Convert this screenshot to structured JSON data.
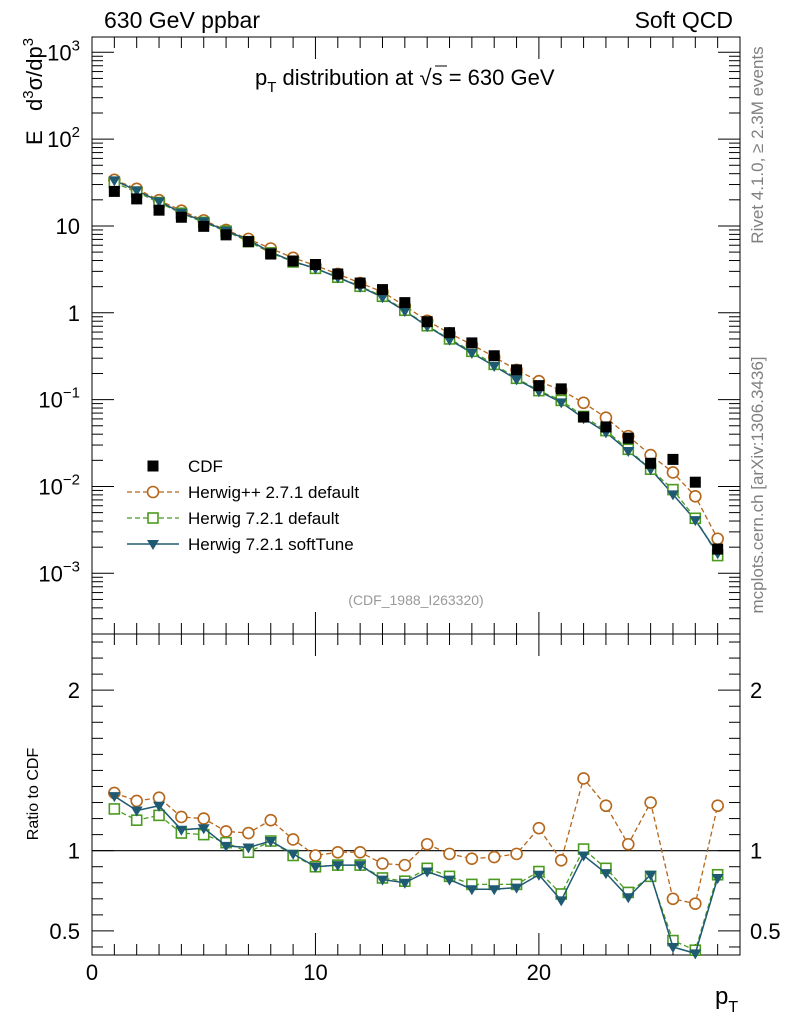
{
  "header": {
    "left_title": "630 GeV ppbar",
    "right_title": "Soft QCD"
  },
  "side_text": {
    "rivet": "Rivet 4.1.0, ≥ 2.3M events",
    "mcplots": "mcplots.cern.ch [arXiv:1306.3436]"
  },
  "chart_data": {
    "type": "scatter",
    "title": "p_T distribution at √s = 630 GeV",
    "title_parts": {
      "pre": "p",
      "sub": "T",
      "mid": " distribution at ",
      "sqrt": "√",
      "s": "s",
      "post": " = 630 GeV"
    },
    "analysis_id": "(CDF_1988_I263320)",
    "xlabel": "p_T",
    "ylabel": "E d³σ/dp³",
    "ratio_ylabel": "Ratio to CDF",
    "xlim": [
      0,
      29
    ],
    "ylim": [
      0.0002,
      1500
    ],
    "yscale": "log",
    "ratio_ylim": [
      0.35,
      2.35
    ],
    "x_ticks": [
      0,
      10,
      20
    ],
    "y_tick_labels": [
      "10^-3",
      "10^-2",
      "10^-1",
      "1",
      "10",
      "10^2",
      "10^3"
    ],
    "ratio_ticks": [
      0.5,
      1,
      2
    ],
    "legend_position": "bottom-left",
    "x": [
      1,
      2,
      3,
      4,
      5,
      6,
      7,
      8,
      9,
      10,
      11,
      12,
      13,
      14,
      15,
      16,
      17,
      18,
      19,
      20,
      21,
      22,
      23,
      24,
      25,
      26,
      27,
      28
    ],
    "series": [
      {
        "name": "CDF",
        "color": "#000000",
        "marker": "square-filled",
        "line": "none",
        "values": [
          25,
          20.5,
          15.2,
          12.6,
          9.9,
          7.9,
          6.6,
          4.75,
          3.95,
          3.6,
          2.8,
          2.2,
          1.85,
          1.31,
          0.79,
          0.59,
          0.45,
          0.32,
          0.22,
          0.145,
          0.133,
          0.063,
          0.0485,
          0.036,
          0.0185,
          0.0205,
          0.0112,
          0.0019
        ]
      },
      {
        "name": "Herwig++ 2.7.1 default",
        "color": "#b5661a",
        "marker": "circle-open",
        "line": "dashed",
        "values": [
          34,
          26.8,
          19.8,
          15,
          11.6,
          9.0,
          7.1,
          5.5,
          4.3,
          3.5,
          2.8,
          2.2,
          1.74,
          1.2,
          0.81,
          0.58,
          0.43,
          0.31,
          0.22,
          0.163,
          0.128,
          0.092,
          0.062,
          0.038,
          0.023,
          0.0145,
          0.0077,
          0.0025
        ]
      },
      {
        "name": "Herwig 7.2.1 default",
        "color": "#4c9a1f",
        "marker": "square-open",
        "line": "dashed",
        "values": [
          31.5,
          24.6,
          18.6,
          14.0,
          11.0,
          8.7,
          6.6,
          4.9,
          3.85,
          3.25,
          2.57,
          2.02,
          1.55,
          1.07,
          0.71,
          0.5,
          0.36,
          0.255,
          0.176,
          0.127,
          0.098,
          0.064,
          0.044,
          0.0268,
          0.0158,
          0.0092,
          0.0043,
          0.0016
        ]
      },
      {
        "name": "Herwig 7.2.1 softTune",
        "color": "#1f5a73",
        "marker": "triangle-down-filled",
        "line": "solid",
        "values": [
          33.5,
          25.6,
          19.2,
          14.2,
          11.3,
          8.8,
          6.9,
          5.0,
          3.9,
          3.25,
          2.55,
          2.0,
          1.51,
          1.05,
          0.7,
          0.49,
          0.345,
          0.244,
          0.171,
          0.125,
          0.093,
          0.061,
          0.042,
          0.0256,
          0.0158,
          0.0081,
          0.0041,
          0.0017
        ]
      }
    ],
    "ratios": [
      {
        "name": "Herwig++ 2.7.1 default",
        "values": [
          1.36,
          1.31,
          1.33,
          1.21,
          1.2,
          1.12,
          1.11,
          1.19,
          1.07,
          0.97,
          0.99,
          0.99,
          0.92,
          0.91,
          1.04,
          0.98,
          0.95,
          0.96,
          0.98,
          1.14,
          0.94,
          1.45,
          1.28,
          1.04,
          1.3,
          0.7,
          0.67,
          1.28
        ]
      },
      {
        "name": "Herwig 7.2.1 default",
        "values": [
          1.26,
          1.19,
          1.22,
          1.11,
          1.1,
          1.05,
          0.99,
          1.06,
          0.97,
          0.9,
          0.91,
          0.91,
          0.83,
          0.81,
          0.89,
          0.84,
          0.79,
          0.79,
          0.79,
          0.87,
          0.73,
          1.01,
          0.89,
          0.74,
          0.84,
          0.44,
          0.38,
          0.85
        ]
      },
      {
        "name": "Herwig 7.2.1 softTune",
        "values": [
          1.34,
          1.25,
          1.28,
          1.13,
          1.14,
          1.03,
          1.02,
          1.06,
          0.98,
          0.9,
          0.91,
          0.91,
          0.82,
          0.8,
          0.87,
          0.82,
          0.76,
          0.76,
          0.77,
          0.85,
          0.69,
          0.97,
          0.86,
          0.71,
          0.85,
          0.4,
          0.36,
          0.83
        ]
      }
    ]
  }
}
